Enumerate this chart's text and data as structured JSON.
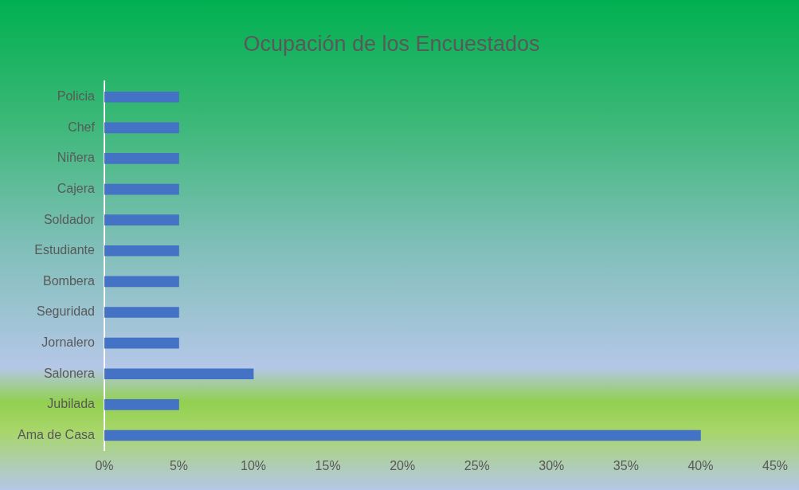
{
  "chart_data": {
    "type": "bar",
    "orientation": "horizontal",
    "title": "Ocupación de los Encuestados",
    "categories": [
      "Policia",
      "Chef",
      "Niñera",
      "Cajera",
      "Soldador",
      "Estudiante",
      "Bombera",
      "Seguridad",
      "Jornalero",
      "Salonera",
      "Jubilada",
      "Ama de Casa"
    ],
    "values": [
      5,
      5,
      5,
      5,
      5,
      5,
      5,
      5,
      5,
      10,
      5,
      40
    ],
    "color": "#4472c4",
    "xlim": [
      0,
      45
    ],
    "xticks": [
      {
        "value": 0,
        "label": "0%"
      },
      {
        "value": 5,
        "label": "5%"
      },
      {
        "value": 10,
        "label": "10%"
      },
      {
        "value": 15,
        "label": "15%"
      },
      {
        "value": 20,
        "label": "20%"
      },
      {
        "value": 25,
        "label": "25%"
      },
      {
        "value": 30,
        "label": "30%"
      },
      {
        "value": 35,
        "label": "35%"
      },
      {
        "value": 40,
        "label": "40%"
      },
      {
        "value": 45,
        "label": "45%"
      }
    ]
  }
}
